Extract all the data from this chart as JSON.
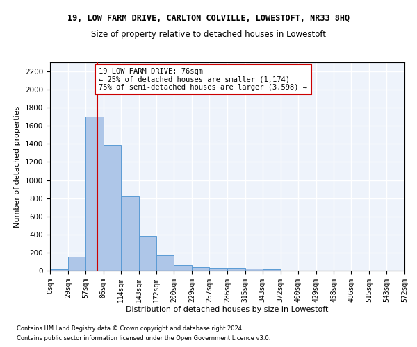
{
  "title": "19, LOW FARM DRIVE, CARLTON COLVILLE, LOWESTOFT, NR33 8HQ",
  "subtitle": "Size of property relative to detached houses in Lowestoft",
  "xlabel": "Distribution of detached houses by size in Lowestoft",
  "ylabel": "Number of detached properties",
  "bar_color": "#aec6e8",
  "bar_edge_color": "#5b9bd5",
  "background_color": "#eef3fb",
  "grid_color": "#ffffff",
  "vline_x": 76,
  "vline_color": "#cc0000",
  "bin_edges": [
    0,
    29,
    57,
    86,
    114,
    143,
    172,
    200,
    229,
    257,
    286,
    315,
    343,
    372,
    400,
    429,
    458,
    486,
    515,
    543,
    572
  ],
  "bar_heights": [
    15,
    155,
    1700,
    1390,
    820,
    385,
    165,
    65,
    38,
    28,
    28,
    25,
    12,
    0,
    0,
    0,
    0,
    0,
    0,
    0
  ],
  "ylim": [
    0,
    2300
  ],
  "yticks": [
    0,
    200,
    400,
    600,
    800,
    1000,
    1200,
    1400,
    1600,
    1800,
    2000,
    2200
  ],
  "annotation_text": "19 LOW FARM DRIVE: 76sqm\n← 25% of detached houses are smaller (1,174)\n75% of semi-detached houses are larger (3,598) →",
  "annotation_box_color": "#ffffff",
  "annotation_box_edge": "#cc0000",
  "footer_line1": "Contains HM Land Registry data © Crown copyright and database right 2024.",
  "footer_line2": "Contains public sector information licensed under the Open Government Licence v3.0.",
  "tick_labels": [
    "0sqm",
    "29sqm",
    "57sqm",
    "86sqm",
    "114sqm",
    "143sqm",
    "172sqm",
    "200sqm",
    "229sqm",
    "257sqm",
    "286sqm",
    "315sqm",
    "343sqm",
    "372sqm",
    "400sqm",
    "429sqm",
    "458sqm",
    "486sqm",
    "515sqm",
    "543sqm",
    "572sqm"
  ]
}
